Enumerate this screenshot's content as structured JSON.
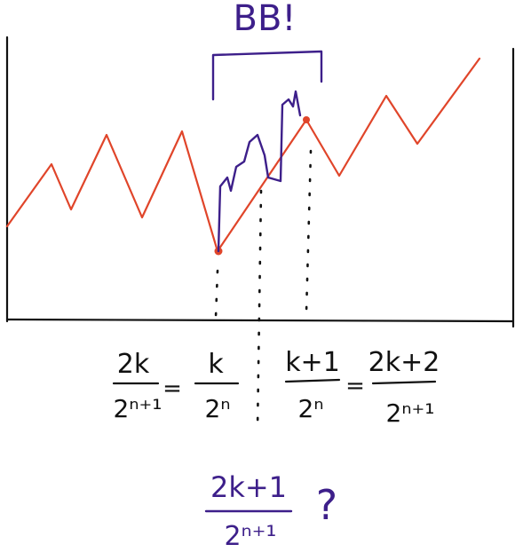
{
  "annotation": {
    "bracket_label": "BB!"
  },
  "equations": {
    "left": {
      "frac1_num": "2k",
      "frac1_den": "2ⁿ⁺¹",
      "eq1": "=",
      "frac2_num": "k",
      "frac2_den": "2ⁿ"
    },
    "right": {
      "frac1_num": "k+1",
      "frac1_den": "2ⁿ",
      "eq1": "=",
      "frac2_num": "2k+2",
      "frac2_den": "2ⁿ⁺¹"
    },
    "bottom": {
      "num": "2k+1",
      "den": "2ⁿ⁺¹",
      "question": "?"
    }
  },
  "colors": {
    "red_path": "#e0452a",
    "purple_ink": "#3d1f8a",
    "black_ink": "#111111"
  }
}
